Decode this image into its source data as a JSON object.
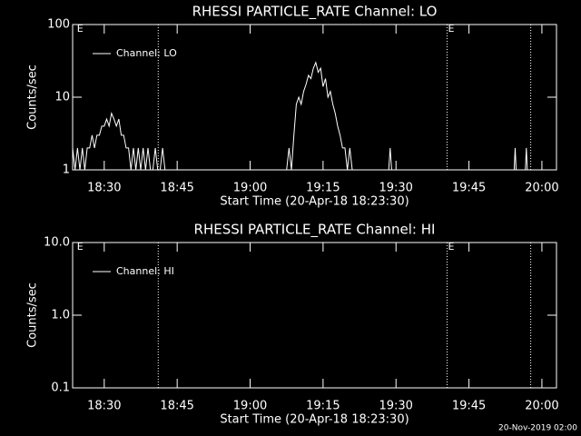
{
  "chart_data": [
    {
      "type": "line",
      "title": "RHESSI PARTICLE_RATE Channel: LO",
      "xlabel": "Start Time (20-Apr-18 18:23:30)",
      "ylabel": "Counts/sec",
      "xlim": [
        0,
        99.5
      ],
      "xticks": [
        {
          "value": 6.5,
          "label": "18:30"
        },
        {
          "value": 21.5,
          "label": "18:45"
        },
        {
          "value": 36.5,
          "label": "19:00"
        },
        {
          "value": 51.5,
          "label": "19:15"
        },
        {
          "value": 66.5,
          "label": "19:30"
        },
        {
          "value": 81.5,
          "label": "19:45"
        },
        {
          "value": 96.5,
          "label": "20:00"
        }
      ],
      "ylim": [
        1,
        100
      ],
      "yticks": [
        1,
        10,
        100
      ],
      "log_y": true,
      "vlines": [
        17.6,
        77,
        94.2
      ],
      "annotations": [
        {
          "text": "E",
          "x": 0.7
        },
        {
          "text": "E",
          "x": 77
        }
      ],
      "series": [
        {
          "name": "Channel: LO",
          "color": "#ffffff",
          "x": [
            0,
            0.5,
            1,
            1.5,
            2,
            2.5,
            3,
            3.5,
            4,
            4.5,
            5,
            5.5,
            6,
            6.5,
            7,
            7.5,
            8,
            8.5,
            9,
            9.5,
            10,
            10.5,
            11,
            11.5,
            12,
            12.5,
            13,
            13.5,
            14,
            14.5,
            15,
            15.5,
            16,
            16.5,
            17,
            17.5,
            18,
            18.5,
            19,
            19.5,
            20,
            30,
            43.5,
            44,
            44.5,
            45,
            45.5,
            46,
            46.5,
            47,
            47.5,
            48,
            48.5,
            49,
            49.5,
            50,
            50.5,
            51,
            51.5,
            52,
            52.5,
            53,
            53.5,
            54,
            54.5,
            55,
            55.5,
            56,
            56.5,
            57,
            57.5,
            58,
            65,
            65.3,
            65.6,
            80,
            90.8,
            91,
            91.2,
            93.1,
            93.3,
            93.5,
            99
          ],
          "values": [
            2,
            1,
            2,
            1,
            2,
            1,
            2,
            2,
            3,
            2,
            3,
            3,
            4,
            4,
            5,
            4,
            6,
            5,
            4,
            5,
            3,
            3,
            2,
            2,
            1,
            2,
            1,
            2,
            1,
            2,
            1,
            2,
            1,
            1,
            2,
            1,
            1,
            2,
            1,
            1,
            1,
            1,
            1,
            1,
            2,
            1,
            3,
            8,
            10,
            8,
            12,
            15,
            20,
            18,
            25,
            30,
            22,
            25,
            14,
            18,
            10,
            12,
            8,
            6,
            4,
            3,
            2,
            2,
            1,
            2,
            1,
            1,
            1,
            2,
            1,
            1,
            1,
            2,
            1,
            1,
            2,
            1,
            1
          ]
        }
      ]
    },
    {
      "type": "line",
      "title": "RHESSI PARTICLE_RATE Channel: HI",
      "xlabel": "Start Time (20-Apr-18 18:23:30)",
      "ylabel": "Counts/sec",
      "xlim": [
        0,
        99.5
      ],
      "xticks": [
        {
          "value": 6.5,
          "label": "18:30"
        },
        {
          "value": 21.5,
          "label": "18:45"
        },
        {
          "value": 36.5,
          "label": "19:00"
        },
        {
          "value": 51.5,
          "label": "19:15"
        },
        {
          "value": 66.5,
          "label": "19:30"
        },
        {
          "value": 81.5,
          "label": "19:45"
        },
        {
          "value": 96.5,
          "label": "20:00"
        }
      ],
      "ylim": [
        0.1,
        10
      ],
      "yticks": [
        0.1,
        {
          "value": 1,
          "label": "1.0"
        },
        {
          "value": 10,
          "label": "10.0"
        }
      ],
      "log_y": true,
      "vlines": [
        17.6,
        77,
        94.2
      ],
      "annotations": [
        {
          "text": "E",
          "x": 0.7
        },
        {
          "text": "E",
          "x": 77
        }
      ],
      "series": [
        {
          "name": "Channel: HI",
          "color": "#ffffff",
          "x": [],
          "values": []
        }
      ]
    }
  ],
  "footer": "20-Nov-2019 02:00"
}
